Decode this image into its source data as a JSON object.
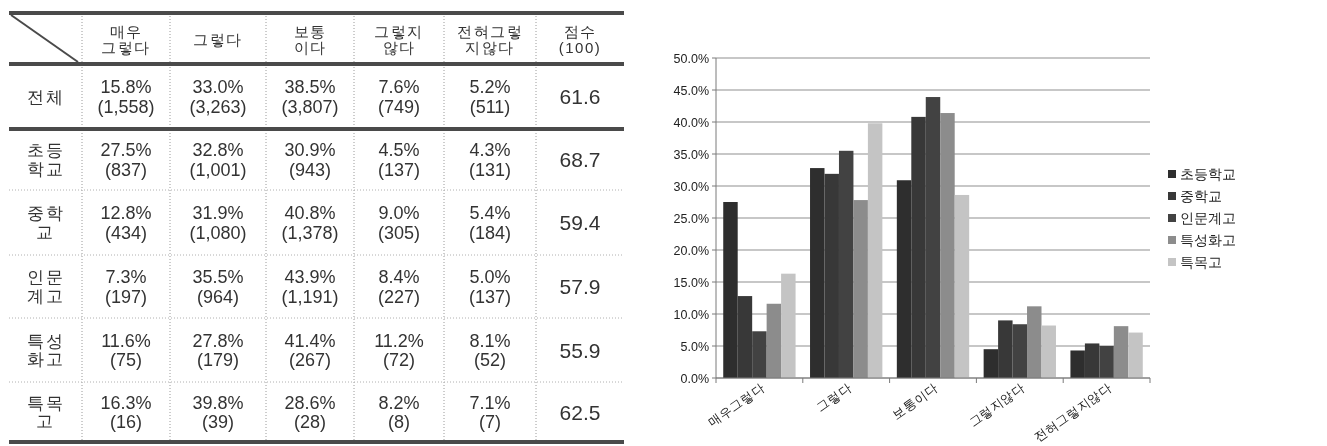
{
  "chart_data": [
    {
      "type": "other",
      "categories": [
        "매우\n그렇다",
        "그렇다",
        "보통\n이다",
        "그렇지\n않다",
        "전혀그렇\n지않다",
        "점수\n(100)"
      ],
      "y_categories": [
        "전체",
        "초등\n학교",
        "중학\n교",
        "인문\n계고",
        "특성\n화고",
        "특목\n고"
      ],
      "cell_labels": [
        [
          "15.8%\n(1,558)",
          "33.0%\n(3,263)",
          "38.5%\n(3,807)",
          "7.6%\n(749)",
          "5.2%\n(511)",
          "61.6"
        ],
        [
          "27.5%\n(837)",
          "32.8%\n(1,001)",
          "30.9%\n(943)",
          "4.5%\n(137)",
          "4.3%\n(131)",
          "68.7"
        ],
        [
          "12.8%\n(434)",
          "31.9%\n(1,080)",
          "40.8%\n(1,378)",
          "9.0%\n(305)",
          "5.4%\n(184)",
          "59.4"
        ],
        [
          "7.3%\n(197)",
          "35.5%\n(964)",
          "43.9%\n(1,191)",
          "8.4%\n(227)",
          "5.0%\n(137)",
          "57.9"
        ],
        [
          "11.6%\n(75)",
          "27.8%\n(179)",
          "41.4%\n(267)",
          "11.2%\n(72)",
          "8.1%\n(52)",
          "55.9"
        ],
        [
          "16.3%\n(16)",
          "39.8%\n(39)",
          "28.6%\n(28)",
          "8.2%\n(8)",
          "7.1%\n(7)",
          "62.5"
        ]
      ]
    },
    {
      "type": "bar",
      "categories": [
        "매우그렇다",
        "그렇다",
        "보통이다",
        "그렇지않다",
        "전혀그렇지않다"
      ],
      "series": [
        {
          "name": "초등학교",
          "color": "#2e2e2e",
          "values": [
            27.5,
            32.8,
            30.9,
            4.5,
            4.3
          ]
        },
        {
          "name": "중학교",
          "color": "#383838",
          "values": [
            12.8,
            31.9,
            40.8,
            9.0,
            5.4
          ]
        },
        {
          "name": "인문계고",
          "color": "#424242",
          "values": [
            7.3,
            35.5,
            43.9,
            8.4,
            5.0
          ]
        },
        {
          "name": "특성화고",
          "color": "#8c8c8c",
          "values": [
            11.6,
            27.8,
            41.4,
            11.2,
            8.1
          ]
        },
        {
          "name": "특목고",
          "color": "#c4c4c4",
          "values": [
            16.3,
            39.8,
            28.6,
            8.2,
            7.1
          ]
        }
      ],
      "ylim": [
        0,
        50
      ],
      "yticks": [
        {
          "value": 0,
          "label": "0.0%"
        },
        {
          "value": 5,
          "label": "5.0%"
        },
        {
          "value": 10,
          "label": "10.0%"
        },
        {
          "value": 15,
          "label": "15.0%"
        },
        {
          "value": 20,
          "label": "20.0%"
        },
        {
          "value": 25,
          "label": "25.0%"
        },
        {
          "value": 30,
          "label": "30.0%"
        },
        {
          "value": 35,
          "label": "35.0%"
        },
        {
          "value": 40,
          "label": "40.0%"
        },
        {
          "value": 45,
          "label": "45.0%"
        },
        {
          "value": 50,
          "label": "50.0%"
        }
      ],
      "grid": "y",
      "legend": "right"
    }
  ]
}
